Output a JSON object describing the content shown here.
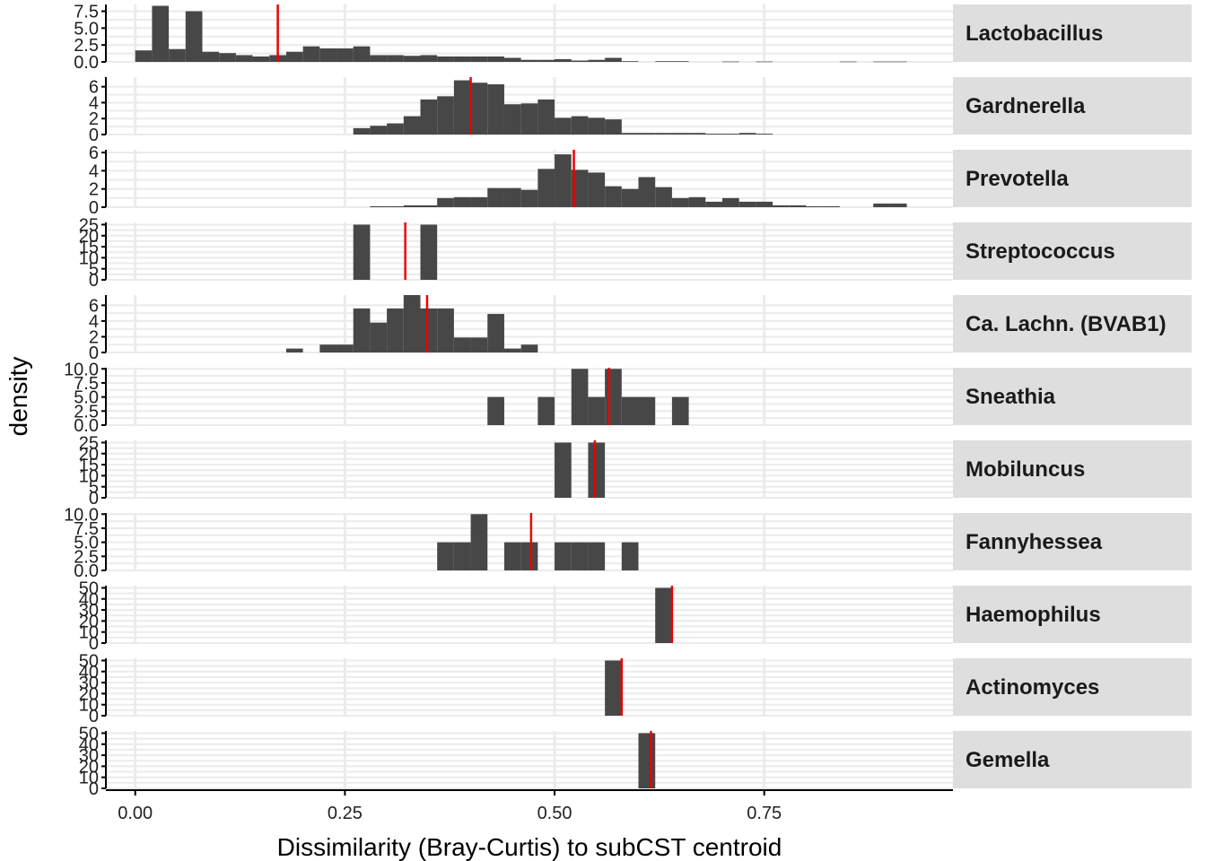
{
  "chart_data": {
    "type": "bar",
    "subtype": "faceted-histogram",
    "xlabel": "Dissimilarity (Bray-Curtis) to subCST centroid",
    "ylabel": "density",
    "xlim": [
      -0.035,
      0.975
    ],
    "x_ticks": [
      {
        "value": 0.0,
        "label": "0.00"
      },
      {
        "value": 0.25,
        "label": "0.25"
      },
      {
        "value": 0.5,
        "label": "0.50"
      },
      {
        "value": 0.75,
        "label": "0.75"
      }
    ],
    "bin_width": 0.02,
    "grid": true,
    "colors": {
      "bar": "#474747",
      "median_line": "#ee0000",
      "strip": "#dedede",
      "grid": "#ebebeb"
    },
    "facets": [
      {
        "name": "Lactobacillus",
        "ylim": [
          0,
          8.5
        ],
        "y_ticks": [
          {
            "value": 0,
            "label": "0.0"
          },
          {
            "value": 2.5,
            "label": "2.5"
          },
          {
            "value": 5,
            "label": "5.0"
          },
          {
            "value": 7.5,
            "label": "7.5"
          }
        ],
        "median": 0.17,
        "bins": [
          [
            0.01,
            1.7
          ],
          [
            0.03,
            8.3
          ],
          [
            0.05,
            1.9
          ],
          [
            0.07,
            7.5
          ],
          [
            0.09,
            1.5
          ],
          [
            0.11,
            1.3
          ],
          [
            0.13,
            1.0
          ],
          [
            0.15,
            0.8
          ],
          [
            0.17,
            1.0
          ],
          [
            0.19,
            1.5
          ],
          [
            0.21,
            2.3
          ],
          [
            0.23,
            2.0
          ],
          [
            0.25,
            2.0
          ],
          [
            0.27,
            2.3
          ],
          [
            0.29,
            1.0
          ],
          [
            0.31,
            1.0
          ],
          [
            0.33,
            0.9
          ],
          [
            0.35,
            1.0
          ],
          [
            0.37,
            0.8
          ],
          [
            0.39,
            0.8
          ],
          [
            0.41,
            0.8
          ],
          [
            0.43,
            0.8
          ],
          [
            0.45,
            0.6
          ],
          [
            0.47,
            0.3
          ],
          [
            0.49,
            0.3
          ],
          [
            0.51,
            0.4
          ],
          [
            0.53,
            0.2
          ],
          [
            0.55,
            0.3
          ],
          [
            0.57,
            0.6
          ],
          [
            0.59,
            0.1
          ],
          [
            0.63,
            0.1
          ],
          [
            0.65,
            0.1
          ],
          [
            0.71,
            0.05
          ],
          [
            0.75,
            0.05
          ],
          [
            0.85,
            0.05
          ],
          [
            0.89,
            0.05
          ],
          [
            0.91,
            0.05
          ]
        ]
      },
      {
        "name": "Gardnerella",
        "ylim": [
          0,
          7.2
        ],
        "y_ticks": [
          {
            "value": 0,
            "label": "0"
          },
          {
            "value": 2,
            "label": "2"
          },
          {
            "value": 4,
            "label": "4"
          },
          {
            "value": 6,
            "label": "6"
          }
        ],
        "median": 0.4,
        "bins": [
          [
            0.27,
            0.8
          ],
          [
            0.29,
            1.1
          ],
          [
            0.31,
            1.4
          ],
          [
            0.33,
            2.3
          ],
          [
            0.35,
            4.4
          ],
          [
            0.37,
            4.8
          ],
          [
            0.39,
            6.8
          ],
          [
            0.41,
            6.5
          ],
          [
            0.43,
            6.3
          ],
          [
            0.45,
            3.8
          ],
          [
            0.47,
            3.9
          ],
          [
            0.49,
            4.4
          ],
          [
            0.51,
            2.1
          ],
          [
            0.53,
            2.3
          ],
          [
            0.55,
            2.1
          ],
          [
            0.57,
            1.9
          ],
          [
            0.59,
            0.2
          ],
          [
            0.61,
            0.2
          ],
          [
            0.63,
            0.2
          ],
          [
            0.65,
            0.2
          ],
          [
            0.67,
            0.2
          ],
          [
            0.69,
            0.1
          ],
          [
            0.71,
            0.1
          ],
          [
            0.73,
            0.2
          ],
          [
            0.75,
            0.1
          ]
        ]
      },
      {
        "name": "Prevotella",
        "ylim": [
          0,
          6.3
        ],
        "y_ticks": [
          {
            "value": 0,
            "label": "0"
          },
          {
            "value": 2,
            "label": "2"
          },
          {
            "value": 4,
            "label": "4"
          },
          {
            "value": 6,
            "label": "6"
          }
        ],
        "median": 0.523,
        "bins": [
          [
            0.29,
            0.1
          ],
          [
            0.31,
            0.1
          ],
          [
            0.33,
            0.2
          ],
          [
            0.35,
            0.2
          ],
          [
            0.37,
            1.0
          ],
          [
            0.39,
            1.1
          ],
          [
            0.41,
            1.1
          ],
          [
            0.43,
            2.1
          ],
          [
            0.45,
            2.1
          ],
          [
            0.47,
            1.9
          ],
          [
            0.49,
            4.2
          ],
          [
            0.51,
            5.8
          ],
          [
            0.53,
            4.1
          ],
          [
            0.55,
            3.8
          ],
          [
            0.57,
            2.3
          ],
          [
            0.59,
            2.0
          ],
          [
            0.61,
            3.3
          ],
          [
            0.63,
            2.2
          ],
          [
            0.65,
            1.0
          ],
          [
            0.67,
            1.1
          ],
          [
            0.69,
            0.6
          ],
          [
            0.71,
            1.0
          ],
          [
            0.73,
            0.6
          ],
          [
            0.75,
            0.6
          ],
          [
            0.77,
            0.2
          ],
          [
            0.79,
            0.2
          ],
          [
            0.81,
            0.1
          ],
          [
            0.83,
            0.1
          ],
          [
            0.89,
            0.4
          ],
          [
            0.91,
            0.4
          ]
        ]
      },
      {
        "name": "Streptococcus",
        "ylim": [
          0,
          26
        ],
        "y_ticks": [
          {
            "value": 0,
            "label": "0"
          },
          {
            "value": 5,
            "label": "5"
          },
          {
            "value": 10,
            "label": "10"
          },
          {
            "value": 15,
            "label": "15"
          },
          {
            "value": 20,
            "label": "20"
          },
          {
            "value": 25,
            "label": "25"
          }
        ],
        "median": 0.322,
        "bins": [
          [
            0.27,
            25
          ],
          [
            0.35,
            25
          ]
        ]
      },
      {
        "name": "Ca. Lachn. (BVAB1)",
        "ylim": [
          0,
          7.3
        ],
        "y_ticks": [
          {
            "value": 0,
            "label": "0"
          },
          {
            "value": 2,
            "label": "2"
          },
          {
            "value": 4,
            "label": "4"
          },
          {
            "value": 6,
            "label": "6"
          }
        ],
        "median": 0.348,
        "bins": [
          [
            0.19,
            0.5
          ],
          [
            0.23,
            1.0
          ],
          [
            0.25,
            1.0
          ],
          [
            0.27,
            5.6
          ],
          [
            0.29,
            3.8
          ],
          [
            0.31,
            5.6
          ],
          [
            0.33,
            7.3
          ],
          [
            0.35,
            5.6
          ],
          [
            0.37,
            5.6
          ],
          [
            0.39,
            1.9
          ],
          [
            0.41,
            1.9
          ],
          [
            0.43,
            4.9
          ],
          [
            0.45,
            0.5
          ],
          [
            0.47,
            1.0
          ]
        ]
      },
      {
        "name": "Sneathia",
        "ylim": [
          0,
          10.2
        ],
        "y_ticks": [
          {
            "value": 0,
            "label": "0.0"
          },
          {
            "value": 2.5,
            "label": "2.5"
          },
          {
            "value": 5,
            "label": "5.0"
          },
          {
            "value": 7.5,
            "label": "7.5"
          },
          {
            "value": 10,
            "label": "10.0"
          }
        ],
        "median": 0.565,
        "bins": [
          [
            0.43,
            5.0
          ],
          [
            0.49,
            5.0
          ],
          [
            0.53,
            10.0
          ],
          [
            0.55,
            5.0
          ],
          [
            0.57,
            10.0
          ],
          [
            0.59,
            5.0
          ],
          [
            0.61,
            5.0
          ],
          [
            0.65,
            5.0
          ]
        ]
      },
      {
        "name": "Mobiluncus",
        "ylim": [
          0,
          26
        ],
        "y_ticks": [
          {
            "value": 0,
            "label": "0"
          },
          {
            "value": 5,
            "label": "5"
          },
          {
            "value": 10,
            "label": "10"
          },
          {
            "value": 15,
            "label": "15"
          },
          {
            "value": 20,
            "label": "20"
          },
          {
            "value": 25,
            "label": "25"
          }
        ],
        "median": 0.548,
        "bins": [
          [
            0.51,
            25
          ],
          [
            0.55,
            25
          ]
        ]
      },
      {
        "name": "Fannyhessea",
        "ylim": [
          0,
          10.2
        ],
        "y_ticks": [
          {
            "value": 0,
            "label": "0.0"
          },
          {
            "value": 2.5,
            "label": "2.5"
          },
          {
            "value": 5,
            "label": "5.0"
          },
          {
            "value": 7.5,
            "label": "7.5"
          },
          {
            "value": 10,
            "label": "10.0"
          }
        ],
        "median": 0.472,
        "bins": [
          [
            0.37,
            5.0
          ],
          [
            0.39,
            5.0
          ],
          [
            0.41,
            10.0
          ],
          [
            0.45,
            5.0
          ],
          [
            0.47,
            5.0
          ],
          [
            0.51,
            5.0
          ],
          [
            0.53,
            5.0
          ],
          [
            0.55,
            5.0
          ],
          [
            0.59,
            5.0
          ]
        ]
      },
      {
        "name": "Haemophilus",
        "ylim": [
          0,
          52
        ],
        "y_ticks": [
          {
            "value": 0,
            "label": "0"
          },
          {
            "value": 10,
            "label": "10"
          },
          {
            "value": 20,
            "label": "20"
          },
          {
            "value": 30,
            "label": "30"
          },
          {
            "value": 40,
            "label": "40"
          },
          {
            "value": 50,
            "label": "50"
          }
        ],
        "median": 0.64,
        "bins": [
          [
            0.63,
            50
          ]
        ]
      },
      {
        "name": "Actinomyces",
        "ylim": [
          0,
          52
        ],
        "y_ticks": [
          {
            "value": 0,
            "label": "0"
          },
          {
            "value": 10,
            "label": "10"
          },
          {
            "value": 20,
            "label": "20"
          },
          {
            "value": 30,
            "label": "30"
          },
          {
            "value": 40,
            "label": "40"
          },
          {
            "value": 50,
            "label": "50"
          }
        ],
        "median": 0.58,
        "bins": [
          [
            0.57,
            50
          ]
        ]
      },
      {
        "name": "Gemella",
        "ylim": [
          0,
          52
        ],
        "y_ticks": [
          {
            "value": 0,
            "label": "0"
          },
          {
            "value": 10,
            "label": "10"
          },
          {
            "value": 20,
            "label": "20"
          },
          {
            "value": 30,
            "label": "30"
          },
          {
            "value": 40,
            "label": "40"
          },
          {
            "value": 50,
            "label": "50"
          }
        ],
        "median": 0.615,
        "bins": [
          [
            0.61,
            50
          ]
        ]
      }
    ]
  }
}
